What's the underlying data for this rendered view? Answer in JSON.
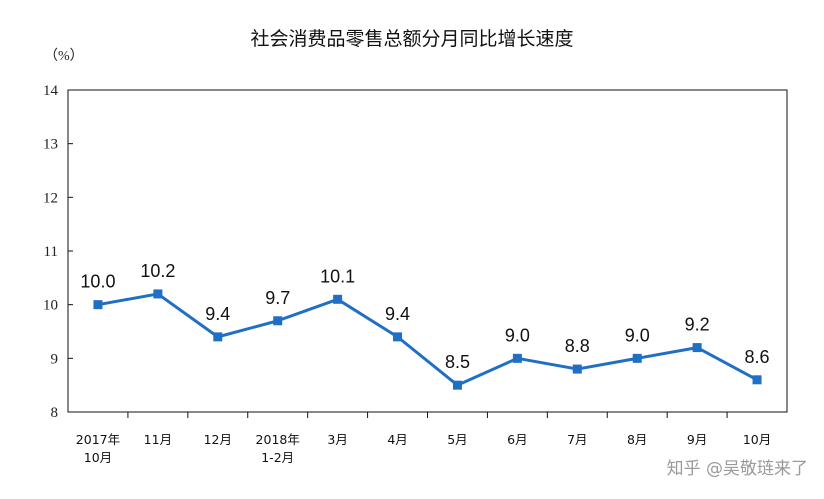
{
  "chart_data": {
    "type": "line",
    "title": "社会消费品零售总额分月同比增长速度",
    "unit_label": "（%）",
    "xlabel": "",
    "ylabel": "",
    "ylim": [
      8,
      14
    ],
    "yticks": [
      "8",
      "9",
      "10",
      "11",
      "12",
      "13",
      "14"
    ],
    "categories": [
      [
        "2017年",
        "10月"
      ],
      [
        "11月"
      ],
      [
        "12月"
      ],
      [
        "2018年",
        "1-2月"
      ],
      [
        "3月"
      ],
      [
        "4月"
      ],
      [
        "5月"
      ],
      [
        "6月"
      ],
      [
        "7月"
      ],
      [
        "8月"
      ],
      [
        "9月"
      ],
      [
        "10月"
      ]
    ],
    "series": [
      {
        "values": [
          10.0,
          10.2,
          9.4,
          9.7,
          10.1,
          9.4,
          8.5,
          9.0,
          8.8,
          9.0,
          9.2,
          8.6
        ],
        "data_labels": [
          "10.0",
          "10.2",
          "9.4",
          "9.7",
          "10.1",
          "9.4",
          "8.5",
          "9.0",
          "8.8",
          "9.0",
          "9.2",
          "8.6"
        ]
      }
    ],
    "grid": false,
    "legend": "none",
    "line_color": "#1f6fc5"
  },
  "watermark": {
    "text": "知乎 @吴敬琏来了"
  }
}
